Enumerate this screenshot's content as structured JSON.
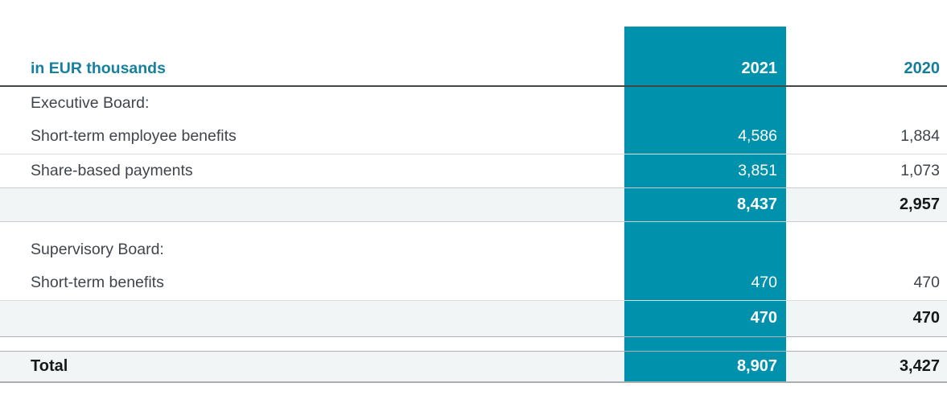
{
  "table": {
    "unit_label": "in EUR thousands",
    "columns": [
      "2021",
      "2020"
    ],
    "rows": [
      {
        "label": "Executive Board:",
        "v2021": "",
        "v2020": ""
      },
      {
        "label": "Short-term employee benefits",
        "v2021": "4,586",
        "v2020": "1,884"
      },
      {
        "label": "Share-based payments",
        "v2021": "3,851",
        "v2020": "1,073"
      },
      {
        "label": "",
        "v2021": "8,437",
        "v2020": "2,957"
      },
      {
        "label": "Supervisory Board:",
        "v2021": "",
        "v2020": ""
      },
      {
        "label": "Short-term benefits",
        "v2021": "470",
        "v2020": "470"
      },
      {
        "label": "",
        "v2021": "470",
        "v2020": "470"
      },
      {
        "label": "Total",
        "v2021": "8,907",
        "v2020": "3,427"
      }
    ]
  },
  "colors": {
    "highlight_column_bg": "#0091ad",
    "header_text_teal": "#17809e",
    "body_text": "#3f454b",
    "emphasis_text": "#16191b",
    "shaded_row_bg": "#f2f5f6"
  }
}
